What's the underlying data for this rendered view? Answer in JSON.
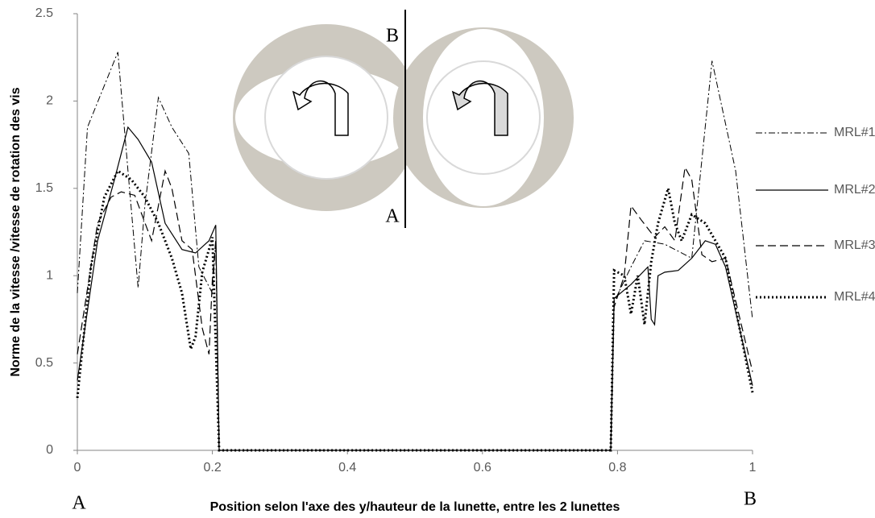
{
  "chart_data": {
    "type": "line",
    "y_label": "Norme de la vitesse /vitesse de rotation des vis",
    "x_label": "Position selon l'axe des y/hauteur de la lunette, entre les 2 lunettes",
    "annotations": {
      "bottom_left": "A",
      "bottom_right": "B",
      "inset_top": "B",
      "inset_bottom": "A"
    },
    "xlim": [
      0,
      1
    ],
    "xticks": [
      0,
      0.2,
      0.4,
      0.6,
      0.8,
      1
    ],
    "ylim": [
      0,
      2.5
    ],
    "yticks": [
      0,
      0.5,
      1,
      1.5,
      2,
      2.5
    ],
    "grid": false,
    "legend": "right",
    "series": [
      {
        "name": "MRL#1",
        "color": "#000000",
        "dash": "dash-dot",
        "x": [
          0,
          0.015,
          0.06,
          0.075,
          0.09,
          0.1,
          0.12,
          0.14,
          0.165,
          0.18,
          0.2,
          0.205,
          0.21,
          0.79,
          0.795,
          0.82,
          0.84,
          0.87,
          0.91,
          0.94,
          0.975,
          1
        ],
        "values": [
          0.9,
          1.85,
          2.28,
          1.6,
          0.93,
          1.4,
          2.02,
          1.85,
          1.7,
          1.05,
          0.9,
          1.2,
          0,
          0,
          0.85,
          1.05,
          1.2,
          1.18,
          1.1,
          2.23,
          1.6,
          0.75
        ]
      },
      {
        "name": "MRL#2",
        "color": "#000000",
        "dash": "solid",
        "x": [
          0,
          0.03,
          0.055,
          0.075,
          0.09,
          0.11,
          0.13,
          0.155,
          0.175,
          0.195,
          0.205,
          0.21,
          0.79,
          0.795,
          0.82,
          0.845,
          0.85,
          0.855,
          0.86,
          0.87,
          0.89,
          0.91,
          0.93,
          0.945,
          0.96,
          1
        ],
        "values": [
          0.4,
          1.2,
          1.55,
          1.85,
          1.78,
          1.65,
          1.3,
          1.15,
          1.13,
          1.2,
          1.29,
          0,
          0,
          0.87,
          0.95,
          1.05,
          0.75,
          0.72,
          1.0,
          1.02,
          1.03,
          1.1,
          1.2,
          1.18,
          1.05,
          0.37
        ]
      },
      {
        "name": "MRL#3",
        "color": "#000000",
        "dash": "dash",
        "x": [
          0,
          0.03,
          0.05,
          0.065,
          0.085,
          0.11,
          0.13,
          0.14,
          0.155,
          0.17,
          0.185,
          0.195,
          0.2,
          0.205,
          0.21,
          0.79,
          0.795,
          0.81,
          0.82,
          0.835,
          0.855,
          0.87,
          0.885,
          0.9,
          0.91,
          0.925,
          0.94,
          0.96,
          1
        ],
        "values": [
          0.55,
          1.3,
          1.45,
          1.48,
          1.46,
          1.2,
          1.6,
          1.5,
          1.2,
          1.15,
          0.7,
          0.55,
          0.98,
          1.2,
          0,
          0,
          0.82,
          1.0,
          1.4,
          1.32,
          1.22,
          1.28,
          1.2,
          1.62,
          1.55,
          1.12,
          1.08,
          1.1,
          0.45
        ]
      },
      {
        "name": "MRL#4",
        "color": "#000000",
        "dash": "dot",
        "x": [
          0,
          0.02,
          0.04,
          0.06,
          0.08,
          0.1,
          0.12,
          0.14,
          0.155,
          0.168,
          0.175,
          0.185,
          0.195,
          0.2,
          0.21,
          0.79,
          0.795,
          0.81,
          0.82,
          0.83,
          0.84,
          0.85,
          0.86,
          0.875,
          0.885,
          0.895,
          0.91,
          0.93,
          0.96,
          1
        ],
        "values": [
          0.3,
          1.05,
          1.45,
          1.6,
          1.55,
          1.45,
          1.3,
          1.1,
          0.9,
          0.58,
          0.65,
          1.02,
          1.15,
          1.22,
          0,
          0,
          1.03,
          1.0,
          0.78,
          1.0,
          0.72,
          1.08,
          1.3,
          1.5,
          1.3,
          1.2,
          1.35,
          1.3,
          1.1,
          0.33
        ]
      }
    ]
  }
}
